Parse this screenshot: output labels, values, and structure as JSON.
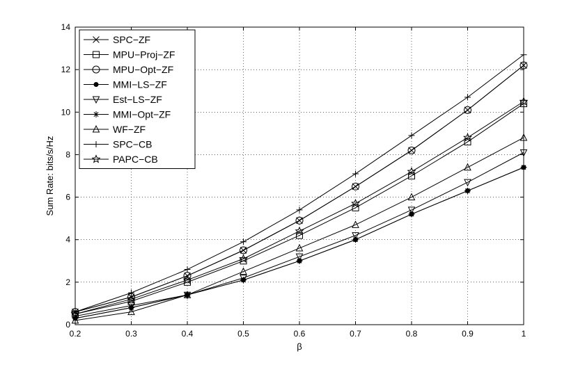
{
  "chart_data": {
    "type": "line",
    "title": "",
    "xlabel": "β",
    "ylabel": "Sum Rate: bits/s/Hz",
    "xlim": [
      0.2,
      1
    ],
    "ylim": [
      0,
      14
    ],
    "x_ticks": [
      "0.2",
      "0.3",
      "0.4",
      "0.5",
      "0.6",
      "0.7",
      "0.8",
      "0.9",
      "1"
    ],
    "y_ticks": [
      "0",
      "2",
      "4",
      "6",
      "8",
      "10",
      "12",
      "14"
    ],
    "grid": true,
    "legend_position": "top-left",
    "x": [
      0.2,
      0.3,
      0.4,
      0.5,
      0.6,
      0.7,
      0.8,
      0.9,
      1.0
    ],
    "series": [
      {
        "name": "SPC−ZF",
        "marker": "x",
        "values": [
          0.6,
          1.3,
          2.3,
          3.5,
          4.9,
          6.5,
          8.2,
          10.1,
          12.2
        ]
      },
      {
        "name": "MPU−Proj−ZF",
        "marker": "square",
        "values": [
          0.5,
          1.1,
          2.0,
          3.0,
          4.2,
          5.5,
          7.0,
          8.6,
          10.4
        ]
      },
      {
        "name": "MPU−Opt−ZF",
        "marker": "circle",
        "values": [
          0.6,
          1.3,
          2.3,
          3.5,
          4.9,
          6.5,
          8.2,
          10.1,
          12.2
        ]
      },
      {
        "name": "MMI−LS−ZF",
        "marker": "dot",
        "values": [
          0.3,
          0.8,
          1.4,
          2.1,
          3.0,
          4.0,
          5.2,
          6.3,
          7.4
        ]
      },
      {
        "name": "Est−LS−ZF",
        "marker": "triangle-down",
        "values": [
          0.4,
          0.9,
          1.4,
          2.2,
          3.2,
          4.2,
          5.4,
          6.7,
          8.1
        ]
      },
      {
        "name": "MMI−Opt−ZF",
        "marker": "asterisk",
        "values": [
          0.3,
          0.8,
          1.4,
          2.1,
          3.0,
          4.0,
          5.2,
          6.3,
          7.4
        ]
      },
      {
        "name": "WF−ZF",
        "marker": "triangle-up",
        "values": [
          0.2,
          0.6,
          1.4,
          2.5,
          3.6,
          4.7,
          6.0,
          7.4,
          8.8
        ]
      },
      {
        "name": "SPC−CB",
        "marker": "plus",
        "values": [
          0.6,
          1.5,
          2.6,
          3.9,
          5.4,
          7.1,
          8.9,
          10.7,
          12.7
        ]
      },
      {
        "name": "PAPC−CB",
        "marker": "star",
        "values": [
          0.5,
          1.2,
          2.1,
          3.1,
          4.4,
          5.7,
          7.2,
          8.8,
          10.5
        ]
      }
    ]
  }
}
